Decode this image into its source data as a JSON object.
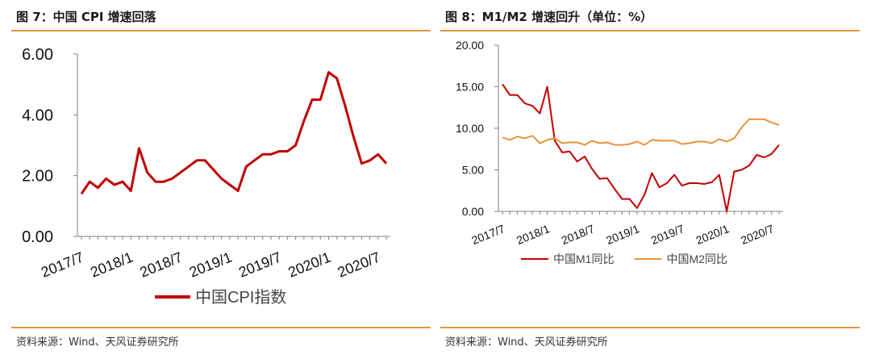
{
  "panels": {
    "left": {
      "title": "图 7：中国 CPI 增速回落",
      "source": "资料来源：Wind、天风证券研究所"
    },
    "right": {
      "title": "图 8：M1/M2 增速回升（单位：%）",
      "source": "资料来源：Wind、天风证券研究所"
    }
  },
  "colors": {
    "accent": "#e8933b",
    "red": "#c00000",
    "orange": "#e8933b",
    "axis": "#7f7f7f"
  },
  "chart_data": [
    {
      "type": "line",
      "x": [
        "2017/7",
        "2017/8",
        "2017/9",
        "2017/10",
        "2017/11",
        "2017/12",
        "2018/1",
        "2018/2",
        "2018/3",
        "2018/4",
        "2018/5",
        "2018/6",
        "2018/7",
        "2018/8",
        "2018/9",
        "2018/10",
        "2018/11",
        "2018/12",
        "2019/1",
        "2019/2",
        "2019/3",
        "2019/4",
        "2019/5",
        "2019/6",
        "2019/7",
        "2019/8",
        "2019/9",
        "2019/10",
        "2019/11",
        "2019/12",
        "2020/1",
        "2020/2",
        "2020/3",
        "2020/4",
        "2020/5",
        "2020/6",
        "2020/7",
        "2020/8"
      ],
      "x_tick_labels": [
        "2017/7",
        "2018/1",
        "2018/7",
        "2019/1",
        "2019/7",
        "2020/1",
        "2020/7"
      ],
      "series": [
        {
          "name": "中国CPI指数",
          "values": [
            1.4,
            1.8,
            1.6,
            1.9,
            1.7,
            1.8,
            1.5,
            2.9,
            2.1,
            1.8,
            1.8,
            1.9,
            2.1,
            2.3,
            2.5,
            2.5,
            2.2,
            1.9,
            1.7,
            1.5,
            2.3,
            2.5,
            2.7,
            2.7,
            2.8,
            2.8,
            3.0,
            3.8,
            4.5,
            4.5,
            5.4,
            5.2,
            4.3,
            3.3,
            2.4,
            2.5,
            2.7,
            2.4
          ]
        }
      ],
      "ylim": [
        0,
        6
      ],
      "y_ticks": [
        "0.00",
        "2.00",
        "4.00",
        "6.00"
      ],
      "title": "",
      "xlabel": "",
      "ylabel": "",
      "legend_position": "bottom"
    },
    {
      "type": "line",
      "x": [
        "2017/7",
        "2017/8",
        "2017/9",
        "2017/10",
        "2017/11",
        "2017/12",
        "2018/1",
        "2018/2",
        "2018/3",
        "2018/4",
        "2018/5",
        "2018/6",
        "2018/7",
        "2018/8",
        "2018/9",
        "2018/10",
        "2018/11",
        "2018/12",
        "2019/1",
        "2019/2",
        "2019/3",
        "2019/4",
        "2019/5",
        "2019/6",
        "2019/7",
        "2019/8",
        "2019/9",
        "2019/10",
        "2019/11",
        "2019/12",
        "2020/1",
        "2020/2",
        "2020/3",
        "2020/4",
        "2020/5",
        "2020/6",
        "2020/7",
        "2020/8"
      ],
      "x_tick_labels": [
        "2017/7",
        "2018/1",
        "2018/7",
        "2019/1",
        "2019/7",
        "2020/1",
        "2020/7"
      ],
      "series": [
        {
          "name": "中国M1同比",
          "color": "#c00000",
          "values": [
            15.3,
            14.0,
            14.0,
            13.0,
            12.7,
            11.8,
            15.0,
            8.5,
            7.1,
            7.2,
            6.0,
            6.6,
            5.1,
            3.9,
            4.0,
            2.7,
            1.5,
            1.5,
            0.4,
            2.0,
            4.6,
            2.9,
            3.4,
            4.4,
            3.1,
            3.4,
            3.4,
            3.3,
            3.5,
            4.4,
            0.0,
            4.8,
            5.0,
            5.5,
            6.8,
            6.5,
            6.9,
            8.0
          ]
        },
        {
          "name": "中国M2同比",
          "color": "#e8933b",
          "values": [
            8.9,
            8.6,
            9.0,
            8.8,
            9.1,
            8.2,
            8.6,
            8.8,
            8.2,
            8.3,
            8.3,
            8.0,
            8.5,
            8.2,
            8.3,
            8.0,
            8.0,
            8.1,
            8.4,
            8.0,
            8.6,
            8.5,
            8.5,
            8.5,
            8.1,
            8.2,
            8.4,
            8.4,
            8.2,
            8.7,
            8.4,
            8.8,
            10.1,
            11.1,
            11.1,
            11.1,
            10.7,
            10.4
          ]
        }
      ],
      "ylim": [
        0,
        20
      ],
      "y_ticks": [
        "0.00",
        "5.00",
        "10.00",
        "15.00",
        "20.00"
      ],
      "title": "",
      "xlabel": "",
      "ylabel": "",
      "legend_position": "bottom"
    }
  ]
}
